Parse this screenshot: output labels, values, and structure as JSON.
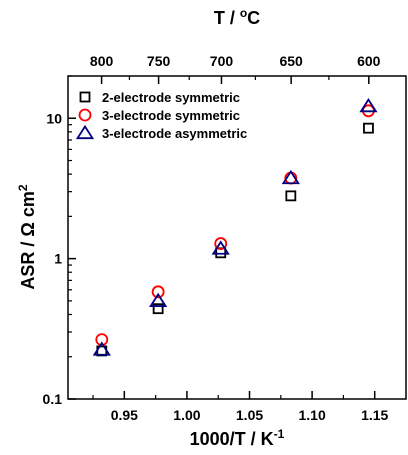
{
  "chart_data": {
    "type": "scatter",
    "xlabel": "1000/T / K",
    "xlabel_sup": "-1",
    "ylabel": "ASR / Ω cm",
    "ylabel_sup": "2",
    "top_label": "T / ",
    "top_label_sup": "o",
    "top_label_unit": "C",
    "x_range": [
      0.905,
      1.175
    ],
    "y_range": [
      0.1,
      20
    ],
    "y_scale": "log",
    "x_ticks": [
      0.95,
      1.0,
      1.05,
      1.1,
      1.15
    ],
    "x_tick_labels": [
      "0.95",
      "1.00",
      "1.05",
      "1.10",
      "1.15"
    ],
    "y_ticks": [
      0.1,
      1,
      10
    ],
    "y_tick_labels": [
      "0.1",
      "1",
      "10"
    ],
    "top_ticks_celsius": [
      800,
      750,
      700,
      650,
      600
    ],
    "top_tick_labels": [
      "800",
      "750",
      "700",
      "650",
      "600"
    ],
    "legend_position": "top-left",
    "series": [
      {
        "name": "2-electrode symmetric",
        "marker": "square",
        "color": "#000000",
        "x": [
          0.932,
          0.977,
          1.027,
          1.083,
          1.145
        ],
        "y": [
          0.22,
          0.44,
          1.1,
          2.8,
          8.5
        ]
      },
      {
        "name": "3-electrode symmetric",
        "marker": "circle",
        "color": "#ff0000",
        "x": [
          0.932,
          0.977,
          1.027,
          1.083,
          1.145
        ],
        "y": [
          0.265,
          0.58,
          1.28,
          3.75,
          11.3
        ]
      },
      {
        "name": "3-electrode asymmetric",
        "marker": "triangle",
        "color": "#000080",
        "x": [
          0.932,
          0.977,
          1.027,
          1.083,
          1.145
        ],
        "y": [
          0.225,
          0.5,
          1.18,
          3.75,
          12.2
        ]
      }
    ]
  }
}
